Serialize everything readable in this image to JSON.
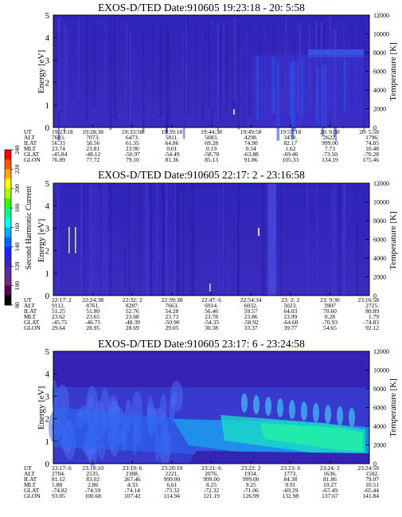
{
  "colorbar": {
    "label": "Second Harmonic Current",
    "ticks": [
      "240",
      "220",
      "200",
      "180",
      "160",
      "140",
      "120",
      "100",
      "80"
    ],
    "colors": [
      "#ff0000",
      "#ff5500",
      "#ffaa00",
      "#ffff00",
      "#aaff00",
      "#33ff00",
      "#00ff88",
      "#00ffff",
      "#00aaff",
      "#0066ff",
      "#2222ff",
      "#3a1fcf",
      "#5a2aa8",
      "#702880",
      "#550055",
      "#000000"
    ]
  },
  "ui": {
    "axis_left": "Energy [eV]",
    "axis_right": "Temperature [K]",
    "row_labels": [
      "UT",
      "ALT",
      "ILAT",
      "MLT",
      "GLAT",
      "GLON"
    ]
  },
  "panels": [
    {
      "title": "EXOS-D/TED   Date:910605  19:23:18 - 20: 5:58",
      "y_ticks": [
        "0",
        "1",
        "2",
        "3",
        "4",
        "5"
      ],
      "temp_ticks": [
        "0",
        "2000",
        "4000",
        "6000",
        "8000",
        "10000",
        "12000"
      ],
      "table": [
        [
          "19:23:18",
          "19:28:38",
          "19:33:58",
          "19:39:18",
          "19:44:38",
          "19:49:58",
          "19:55:18",
          "20: 0:38",
          "20: 5:58"
        ],
        [
          "7603.",
          "7073.",
          "6473.",
          "5811.",
          "5083.",
          "4298.",
          "3470.",
          "2622.",
          "1796."
        ],
        [
          "56.33",
          "58.56",
          "61.35",
          "64.86",
          "69.28",
          "74.90",
          "82.17",
          "999.00",
          "74.85"
        ],
        [
          "23.74",
          "23.81",
          "23.90",
          "0.01",
          "0.19",
          "0.54",
          "1.62",
          "7.73",
          "10.48"
        ],
        [
          "-45.84",
          "-48.12",
          "-50.97",
          "-54.49",
          "-58.78",
          "-63.88",
          "-69.46",
          "-73.50",
          "-70.28"
        ],
        [
          "76.89",
          "77.72",
          "79.10",
          "81.36",
          "85.13",
          "91.86",
          "105.33",
          "134.19",
          "175.46"
        ]
      ]
    },
    {
      "title": "EXOS-D/TED   Date:910605  22:17: 2 - 23:16:58",
      "y_ticks": [
        "0",
        "1",
        "2",
        "3",
        "4",
        "5"
      ],
      "temp_ticks": [
        "0",
        "2000",
        "4000",
        "6000",
        "8000",
        "10000",
        "12000"
      ],
      "table": [
        [
          "22:17: 2",
          "22:24:38",
          "22:32: 2",
          "22:39:38",
          "22:47: 6",
          "22:54:34",
          "23: 2: 2",
          "23: 9:30",
          "23:16:58"
        ],
        [
          "9112.",
          "8761.",
          "8287.",
          "7663.",
          "6914.",
          "6032.",
          "5023.",
          "3907",
          "2725."
        ],
        [
          "51.25",
          "51.80",
          "52.76",
          "54.28",
          "56.46",
          "59.57",
          "64.03",
          "70.60",
          "80.89"
        ],
        [
          "23.62",
          "23.65",
          "23.68",
          "23.73",
          "23.78",
          "23.86",
          "23.99",
          "0.28",
          "1.79"
        ],
        [
          "-45.75",
          "-46.75",
          "-48.39",
          "-50.90",
          "-54.35",
          "-58.92",
          "-64.60",
          "-70.93",
          "-74.83"
        ],
        [
          "29.64",
          "28.95",
          "28.69",
          "29.05",
          "30.38",
          "33.37",
          "39.77",
          "54.65",
          "92.12"
        ]
      ]
    },
    {
      "title": "EXOS-D/TED   Date:910605  23:17: 6 - 23:24:58",
      "y_ticks": [
        "0",
        "1",
        "2",
        "3",
        "4",
        "5"
      ],
      "temp_ticks": [
        "0",
        "2000",
        "4000",
        "6000",
        "8000",
        "10000",
        "12000"
      ],
      "table": [
        [
          "23:17: 6",
          "23:18:10",
          "23:19: 6",
          "23:20:10",
          "23:21: 6",
          "23:22: 2",
          "23:23: 6",
          "23:24: 2",
          "23:24:58"
        ],
        [
          "2704.",
          "2535.",
          "2388.",
          "2221.",
          "2076.",
          "1934.",
          "1773.",
          "1636.",
          "1502."
        ],
        [
          "81.12",
          "83.02",
          "267.46",
          "999.00",
          "999.00",
          "999.00",
          "84.38",
          "81.86",
          "79.07"
        ],
        [
          "1.88",
          "2.86",
          "4.33",
          "6.61",
          "8.25",
          "9.25",
          "9.91",
          "10.27",
          "10.51"
        ],
        [
          "-74.82",
          "-74.59",
          "-74.14",
          "-73.32",
          "-72.32",
          "-71.06",
          "-69.29",
          "-67.49",
          "-65.44"
        ],
        [
          "93.05",
          "100.68",
          "107.42",
          "114.94",
          "121.19",
          "126.99",
          "132.98",
          "137.67",
          "141.84"
        ]
      ]
    }
  ],
  "chart_data": [
    {
      "type": "heatmap",
      "title": "EXOS-D/TED   Date:910605  19:23:18 - 20: 5:58",
      "ylabel": "Energy [eV]",
      "ylabel_right": "Temperature [K]",
      "ylim": [
        0,
        5
      ],
      "ylim_right": [
        0,
        12000
      ],
      "x": [
        "19:23:18",
        "19:28:38",
        "19:33:58",
        "19:39:18",
        "19:44:38",
        "19:49:58",
        "19:55:18",
        "20: 0:38",
        "20: 5:58"
      ]
    },
    {
      "type": "heatmap",
      "title": "EXOS-D/TED   Date:910605  22:17: 2 - 23:16:58",
      "ylabel": "Energy [eV]",
      "ylabel_right": "Temperature [K]",
      "ylim": [
        0,
        5
      ],
      "ylim_right": [
        0,
        12000
      ],
      "x": [
        "22:17: 2",
        "22:24:38",
        "22:32: 2",
        "22:39:38",
        "22:47: 6",
        "22:54:34",
        "23: 2: 2",
        "23: 9:30",
        "23:16:58"
      ]
    },
    {
      "type": "heatmap",
      "title": "EXOS-D/TED   Date:910605  23:17: 6 - 23:24:58",
      "ylabel": "Energy [eV]",
      "ylabel_right": "Temperature [K]",
      "ylim": [
        0,
        5
      ],
      "ylim_right": [
        0,
        12000
      ],
      "x": [
        "23:17: 6",
        "23:18:10",
        "23:19: 6",
        "23:20:10",
        "23:21: 6",
        "23:22: 2",
        "23:23: 6",
        "23:24: 2",
        "23:24:58"
      ]
    }
  ]
}
